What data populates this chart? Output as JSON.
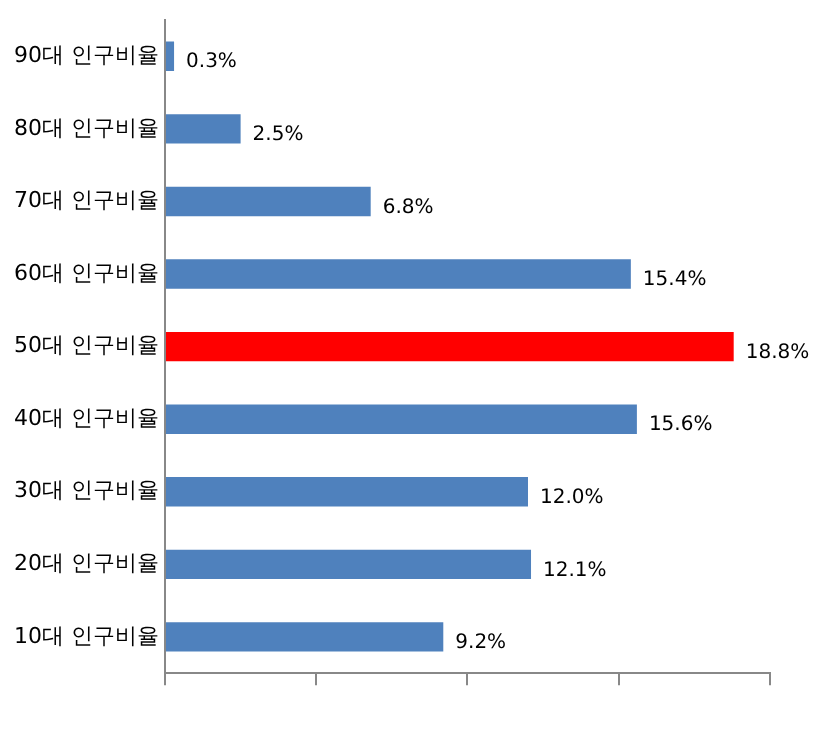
{
  "chart_data": {
    "type": "bar",
    "orientation": "horizontal",
    "categories": [
      "90대 인구비율",
      "80대 인구비율",
      "70대 인구비율",
      "60대 인구비율",
      "50대 인구비율",
      "40대 인구비율",
      "30대 인구비율",
      "20대 인구비율",
      "10대 인구비율"
    ],
    "values": [
      0.3,
      2.5,
      6.8,
      15.4,
      18.8,
      15.6,
      12.0,
      12.1,
      9.2
    ],
    "colors": [
      "#4f81bd",
      "#4f81bd",
      "#4f81bd",
      "#4f81bd",
      "#ff0000",
      "#4f81bd",
      "#4f81bd",
      "#4f81bd",
      "#4f81bd"
    ],
    "value_labels": [
      "0.3%",
      "2.5%",
      "6.8%",
      "15.4%",
      "18.8%",
      "15.6%",
      "12.0%",
      "12.1%",
      "9.2%"
    ],
    "xlim": [
      0,
      20
    ],
    "xticks": [
      {
        "value": 0,
        "label": null
      },
      {
        "value": 5,
        "label": null
      },
      {
        "value": 10,
        "label": null
      },
      {
        "value": 15,
        "label": null
      },
      {
        "value": 20,
        "label": null
      }
    ],
    "tick_labels": "y",
    "grid": false,
    "legend": false
  }
}
